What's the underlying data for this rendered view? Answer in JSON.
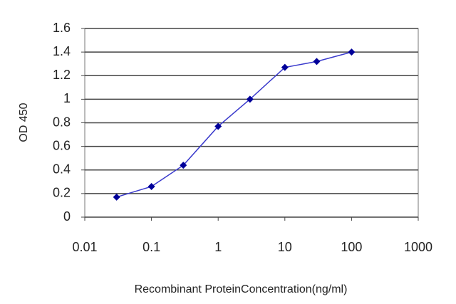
{
  "chart_data": {
    "type": "line",
    "xlabel": "Recombinant ProteinConcentration(ng/ml)",
    "ylabel": "OD 450",
    "x": [
      0.03,
      0.1,
      0.3,
      1,
      3,
      10,
      30,
      100
    ],
    "series": [
      {
        "color": "#3a3acc",
        "marker_color": "#000099",
        "values": [
          0.17,
          0.26,
          0.44,
          0.77,
          1.0,
          1.27,
          1.32,
          1.4
        ]
      }
    ],
    "xscale": "log",
    "xlim": [
      0.01,
      1000
    ],
    "xticks": [
      0.01,
      0.1,
      1,
      10,
      100,
      1000
    ],
    "ylim": [
      0,
      1.6
    ],
    "yticks": [
      0,
      0.2,
      0.4,
      0.6,
      0.8,
      1,
      1.2,
      1.4,
      1.6
    ],
    "grid": true
  }
}
